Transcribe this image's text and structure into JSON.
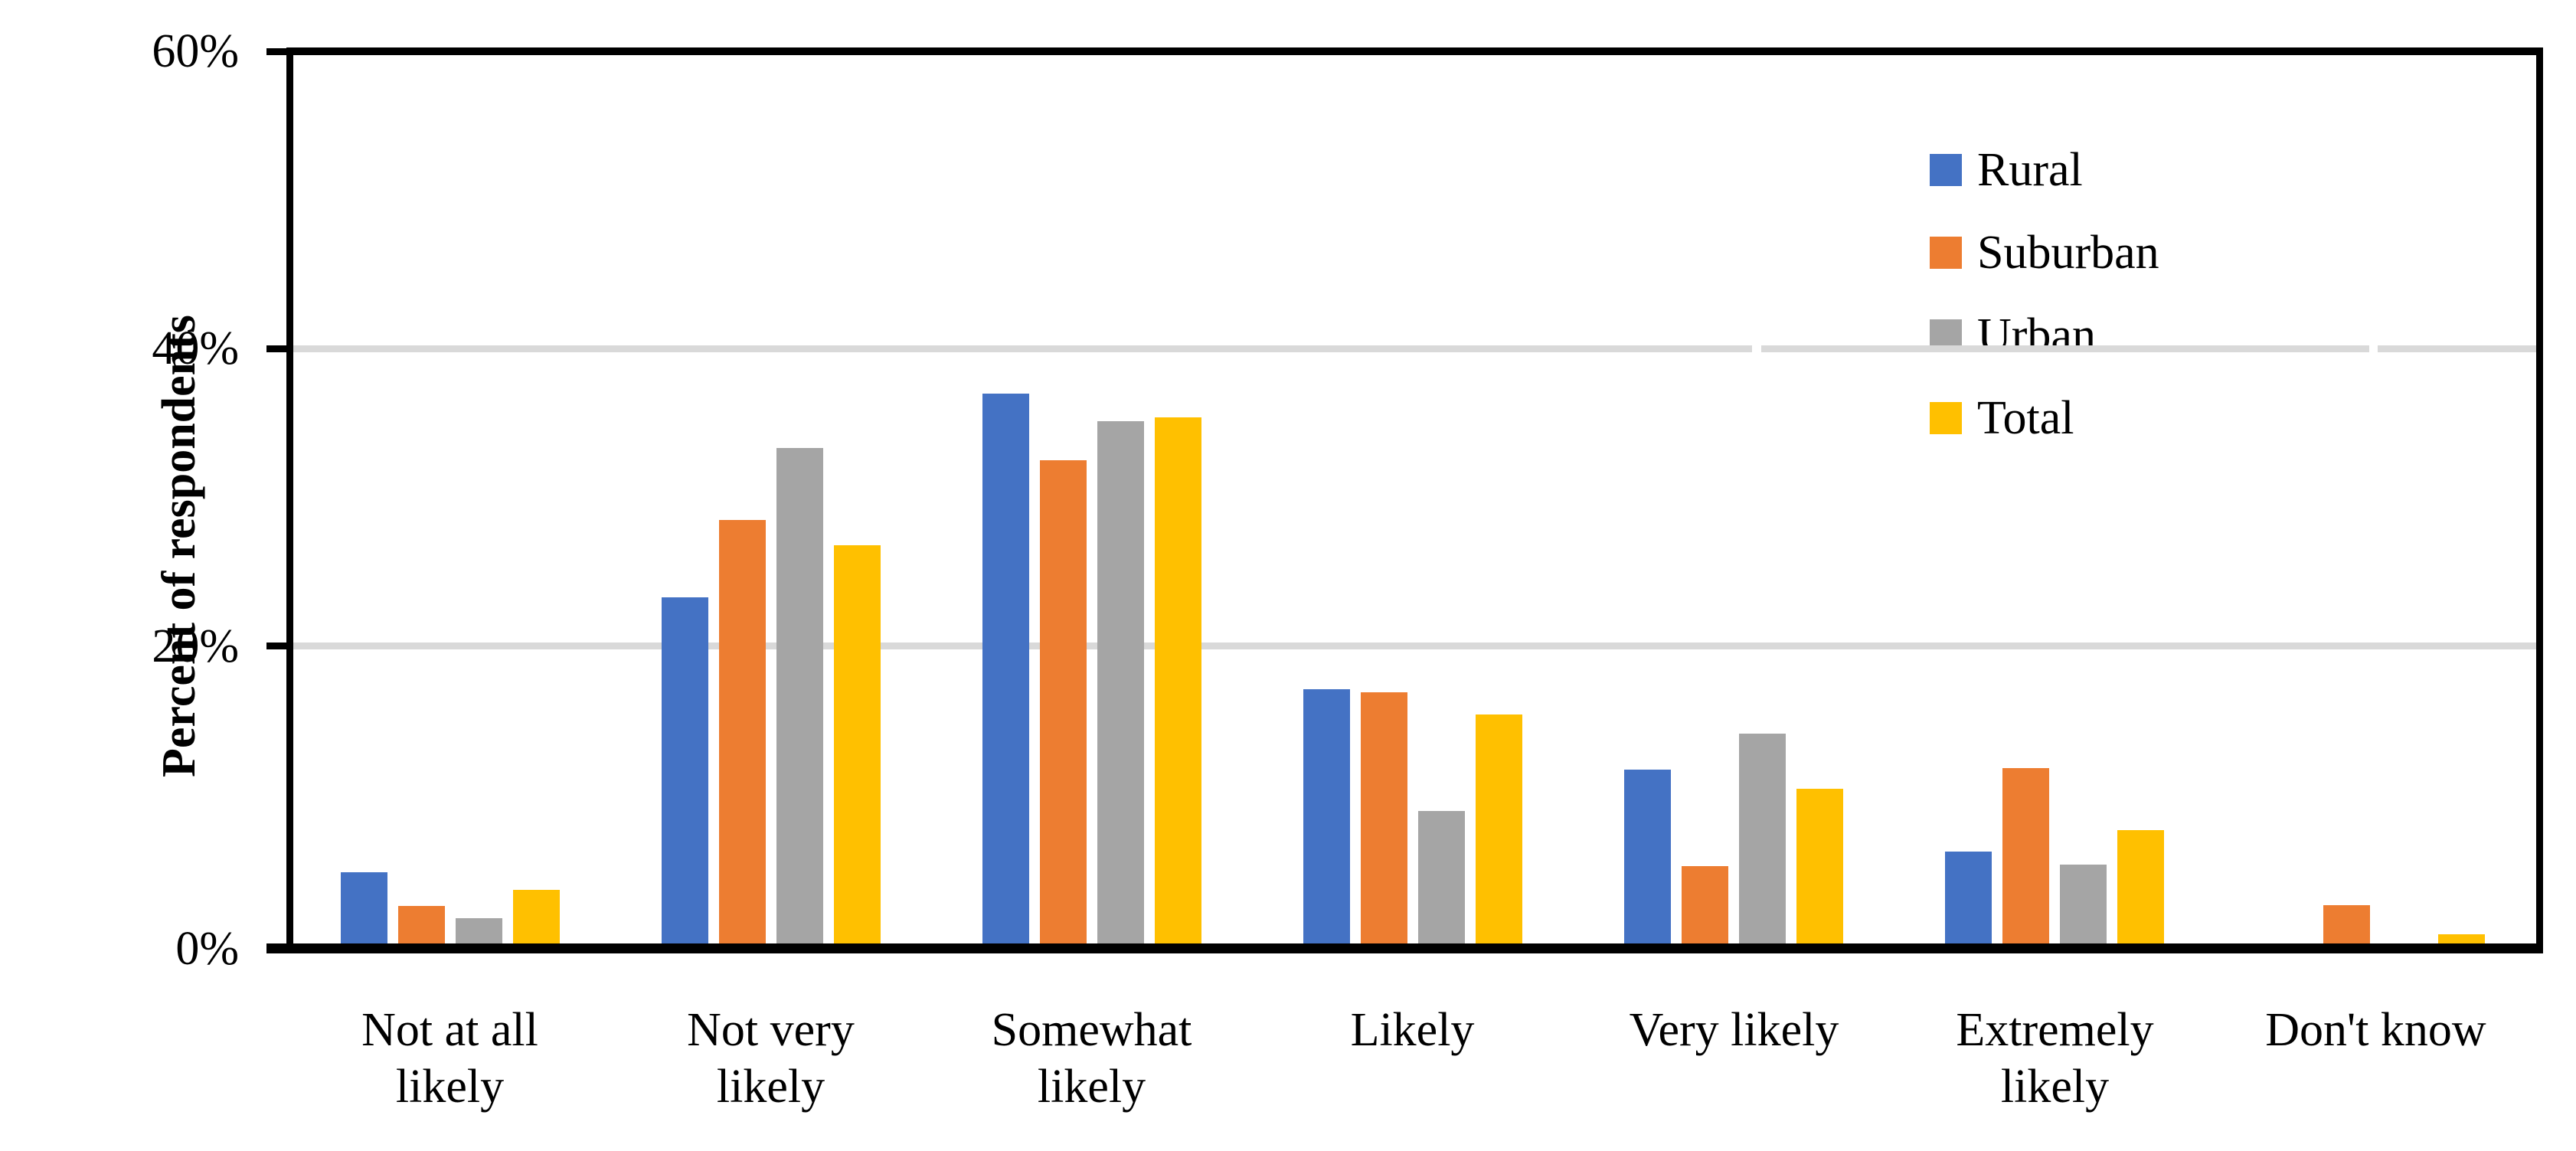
{
  "chart_data": {
    "type": "bar",
    "title": "",
    "xlabel": "",
    "ylabel": "Percent of respondents",
    "categories": [
      "Not at all likely",
      "Not very likely",
      "Somewhat likely",
      "Likely",
      "Very likely",
      "Extremely likely",
      "Don't know"
    ],
    "category_label_lines": [
      [
        "Not at all",
        "likely"
      ],
      [
        "Not very",
        "likely"
      ],
      [
        "Somewhat",
        "likely"
      ],
      [
        "Likely"
      ],
      [
        "Very likely"
      ],
      [
        "Extremely",
        "likely"
      ],
      [
        "Don't know"
      ]
    ],
    "series": [
      {
        "name": "Rural",
        "color": "#4472C4",
        "values": [
          4.8,
          23.3,
          37.0,
          17.1,
          11.7,
          6.2,
          0
        ]
      },
      {
        "name": "Suburban",
        "color": "#ED7D31",
        "values": [
          2.5,
          28.5,
          32.5,
          16.9,
          5.2,
          11.8,
          2.6
        ]
      },
      {
        "name": "Urban",
        "color": "#A5A5A5",
        "values": [
          1.7,
          33.3,
          35.1,
          8.9,
          14.1,
          5.3,
          0
        ]
      },
      {
        "name": "Total",
        "color": "#FFC000",
        "values": [
          3.6,
          26.8,
          35.4,
          15.4,
          10.4,
          7.6,
          0.6
        ]
      }
    ],
    "y_axis": {
      "tick_labels": [
        "0%",
        "20%",
        "40%",
        "60%"
      ],
      "tick_values": [
        0,
        20,
        40,
        60
      ],
      "ylim": [
        0,
        60
      ]
    },
    "legend": {
      "position": "top-right",
      "entries": [
        "Rural",
        "Suburban",
        "Urban",
        "Total"
      ]
    },
    "grid": {
      "horizontal": true,
      "gridline_values": [
        20,
        40
      ],
      "color": "#D9D9D9"
    },
    "axis_color": "#000000",
    "background_color": "#FFFFFF"
  }
}
